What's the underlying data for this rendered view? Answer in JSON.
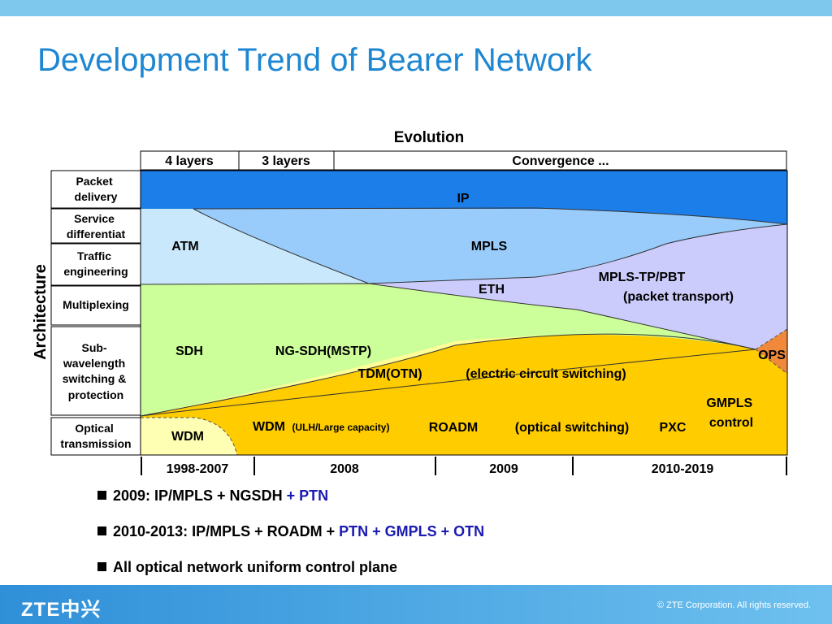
{
  "title": "Development Trend of Bearer Network",
  "diagram": {
    "evolution_label": "Evolution",
    "phases": [
      "4 layers",
      "3 layers",
      "Convergence ..."
    ],
    "architecture_label": "Architecture",
    "rows": [
      [
        "Packet",
        "delivery"
      ],
      [
        "Service",
        "differentiat"
      ],
      [
        "Traffic",
        "engineering"
      ],
      [
        "Multiplexing"
      ],
      [
        "Sub-",
        "wavelength",
        "switching &",
        "protection"
      ],
      [
        "Optical",
        "transmission"
      ]
    ],
    "region_labels": {
      "ip": "IP",
      "atm": "ATM",
      "mpls": "MPLS",
      "mpls_tp": "MPLS-TP/PBT",
      "packet_transport": "(packet transport)",
      "eth": "ETH",
      "sdh": "SDH",
      "ngsdh": "NG-SDH(MSTP)",
      "tdm": "TDM(OTN)",
      "electric": "(electric circuit switching)",
      "ops": "OPS",
      "gmpls": [
        "GMPLS",
        "control"
      ],
      "wdm_left": "WDM",
      "wdm_main": "WDM",
      "ulh": "(ULH/Large capacity)",
      "roadm": "ROADM",
      "optical_switching": "(optical switching)",
      "pxc": "PXC"
    },
    "years": [
      "1998-2007",
      "2008",
      "2009",
      "2010-2019"
    ],
    "colors": {
      "ip": "#1c7ee8",
      "atm": "#c9e8fb",
      "mpls": "#99ccfa",
      "mpls_tp": "#ccccfc",
      "sdh": "#ccff99",
      "tdm": "#ffff99",
      "gmpls": "#ffcc00",
      "ops": "#f08a3a",
      "wdm_left": "#ffffb3"
    }
  },
  "bullets": [
    {
      "text": "2009: IP/MPLS + NGSDH ",
      "highlight": "+ PTN"
    },
    {
      "text": "2010-2013: IP/MPLS + ROADM + ",
      "highlight": "PTN + GMPLS + OTN"
    },
    {
      "text": "All optical network uniform control plane",
      "highlight": ""
    }
  ],
  "footer": {
    "logo": "ZTE中兴",
    "copyright": "© ZTE Corporation. All rights reserved."
  }
}
